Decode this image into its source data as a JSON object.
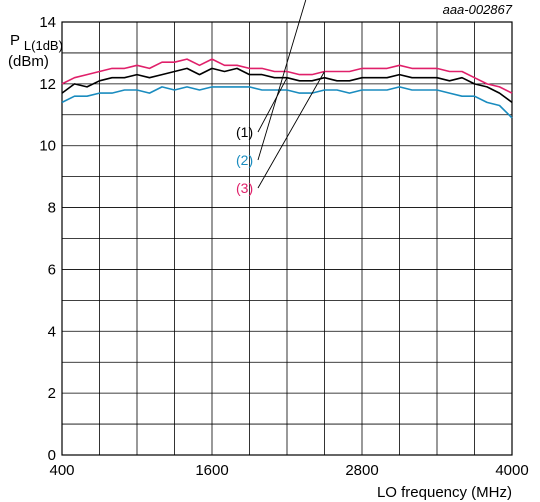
{
  "figure_id": "aaa-002867",
  "chart_data": {
    "type": "line",
    "title": "",
    "xlabel": "LO frequency (MHz)",
    "ylabel": {
      "main": "P",
      "subscript": "L(1dB)",
      "unit": "(dBm)"
    },
    "xlim": [
      400,
      4000
    ],
    "ylim": [
      0,
      14
    ],
    "x_ticks": [
      400,
      1600,
      2800,
      4000
    ],
    "y_ticks": [
      0,
      2,
      4,
      6,
      8,
      10,
      12,
      14
    ],
    "grid": true,
    "x": [
      400,
      500,
      600,
      700,
      800,
      900,
      1000,
      1100,
      1200,
      1300,
      1400,
      1500,
      1600,
      1700,
      1800,
      1900,
      2000,
      2100,
      2200,
      2300,
      2400,
      2500,
      2600,
      2700,
      2800,
      2900,
      3000,
      3100,
      3200,
      3300,
      3400,
      3500,
      3600,
      3700,
      3800,
      3900,
      4000
    ],
    "series": [
      {
        "name": "(1)",
        "color": "#000000",
        "values": [
          11.7,
          12.0,
          11.9,
          12.1,
          12.2,
          12.2,
          12.3,
          12.2,
          12.3,
          12.4,
          12.5,
          12.3,
          12.5,
          12.4,
          12.5,
          12.3,
          12.3,
          12.2,
          12.2,
          12.1,
          12.1,
          12.2,
          12.1,
          12.1,
          12.2,
          12.2,
          12.2,
          12.3,
          12.2,
          12.2,
          12.2,
          12.1,
          12.2,
          12.0,
          11.9,
          11.7,
          11.4
        ]
      },
      {
        "name": "(2)",
        "color": "#1a8cbf",
        "values": [
          11.4,
          11.6,
          11.6,
          11.7,
          11.7,
          11.8,
          11.8,
          11.7,
          11.9,
          11.8,
          11.9,
          11.8,
          11.9,
          11.9,
          11.9,
          11.9,
          11.8,
          11.8,
          11.8,
          11.7,
          11.7,
          11.8,
          11.8,
          11.7,
          11.8,
          11.8,
          11.8,
          11.9,
          11.8,
          11.8,
          11.8,
          11.7,
          11.6,
          11.6,
          11.4,
          11.3,
          10.9
        ]
      },
      {
        "name": "(3)",
        "color": "#e0206a",
        "values": [
          12.0,
          12.2,
          12.3,
          12.4,
          12.5,
          12.5,
          12.6,
          12.5,
          12.7,
          12.7,
          12.8,
          12.6,
          12.8,
          12.6,
          12.6,
          12.5,
          12.5,
          12.4,
          12.4,
          12.3,
          12.3,
          12.4,
          12.4,
          12.4,
          12.5,
          12.5,
          12.5,
          12.6,
          12.5,
          12.5,
          12.5,
          12.4,
          12.4,
          12.2,
          12.0,
          11.9,
          11.7
        ]
      }
    ]
  }
}
